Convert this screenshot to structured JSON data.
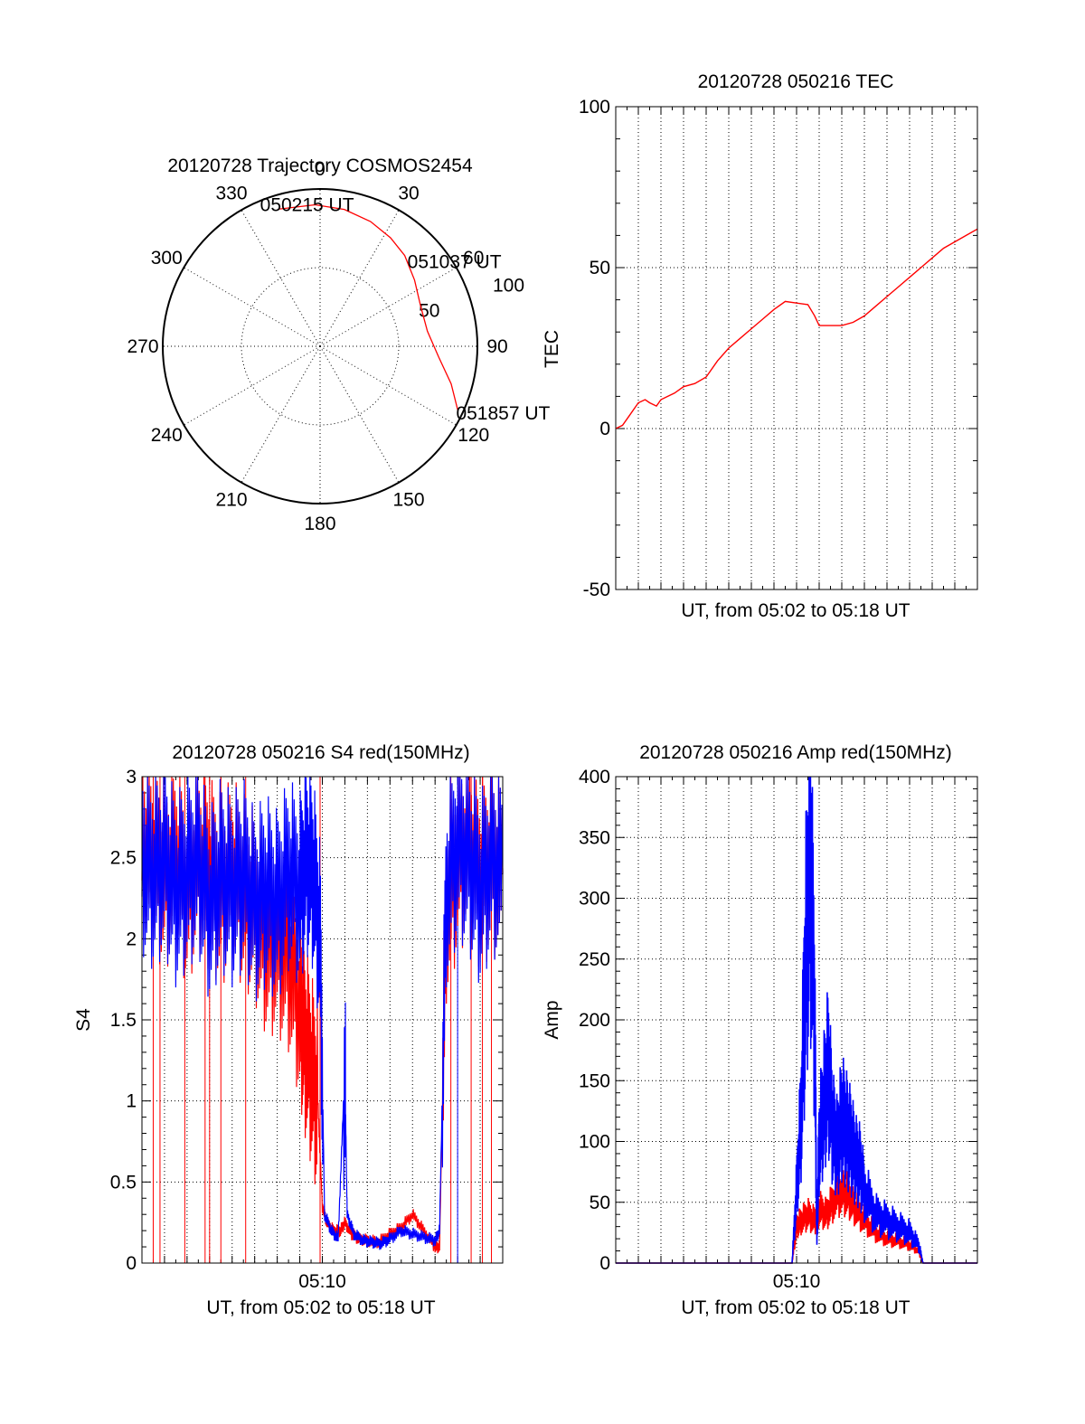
{
  "colors": {
    "red": "#ff0000",
    "blue": "#0000ff",
    "axis": "#000000",
    "grid": "#000000"
  },
  "chart_data": [
    {
      "type": "polar",
      "title": "20120728 Trajectory COSMOS2454",
      "angle_labels": [
        "0",
        "30",
        "60",
        "90",
        "120",
        "150",
        "180",
        "210",
        "240",
        "270",
        "300",
        "330"
      ],
      "radial_labels": [
        "50",
        "100"
      ],
      "radial_range": [
        0,
        100
      ],
      "grid": true,
      "series": [
        {
          "points": [
            {
              "az": 343,
              "el": 8
            },
            {
              "az": 358,
              "el": 9
            },
            {
              "az": 10,
              "el": 10.5
            },
            {
              "az": 22,
              "el": 13
            },
            {
              "az": 33,
              "el": 16
            },
            {
              "az": 43,
              "el": 19
            },
            {
              "az": 55,
              "el": 24
            },
            {
              "az": 68,
              "el": 28
            },
            {
              "az": 82,
              "el": 28
            },
            {
              "az": 95,
              "el": 22
            },
            {
              "az": 106,
              "el": 12
            },
            {
              "az": 115,
              "el": 3
            }
          ]
        }
      ],
      "annotations": [
        {
          "text": "050215 UT",
          "az": 343,
          "el": 8
        },
        {
          "text": "051037 UT",
          "az": 52,
          "el": 20
        },
        {
          "text": "051857 UT",
          "az": 115,
          "el": 3
        }
      ]
    },
    {
      "type": "line",
      "title": "20120728 050216 TEC",
      "xlabel": "UT, from 05:02 to 05:18 UT",
      "ylabel": "TEC",
      "xlim": [
        0,
        16
      ],
      "ylim": [
        -50,
        100
      ],
      "yticks": [
        "-50",
        "0",
        "50",
        "100"
      ],
      "xticks": [],
      "grid": true,
      "series": [
        {
          "x": [
            0,
            0.3,
            0.6,
            1.0,
            1.3,
            1.5,
            1.8,
            2.0,
            2.3,
            2.6,
            3.0,
            3.5,
            4.0,
            4.5,
            5.0,
            5.5,
            6.0,
            6.5,
            7.0,
            7.5,
            8.0,
            8.5,
            8.8,
            9.0,
            9.5,
            10.0,
            10.5,
            11.0,
            11.5,
            12.0,
            12.5,
            13.0,
            13.5,
            14.0,
            14.5,
            15.0,
            15.5,
            16.0
          ],
          "y": [
            0,
            1,
            4,
            8,
            9,
            8,
            7,
            9,
            10,
            11,
            13,
            14,
            16,
            21,
            25,
            28,
            31,
            34,
            37,
            39.5,
            39,
            38.5,
            35,
            32,
            32,
            32,
            33,
            35,
            38,
            41,
            44,
            47,
            50,
            53,
            56,
            58,
            60,
            62
          ]
        }
      ]
    },
    {
      "type": "line",
      "title": "20120728 050216 S4 red(150MHz)",
      "xlabel": "UT, from 05:02 to 05:18 UT",
      "ylabel": "S4",
      "xlim": [
        0,
        16
      ],
      "ylim": [
        0,
        3
      ],
      "yticks": [
        "0",
        "0.5",
        "1",
        "1.5",
        "2",
        "2.5",
        "3"
      ],
      "xticks": [
        {
          "label": "05:10",
          "value": 8
        }
      ],
      "grid": true,
      "series": [
        {
          "name": "",
          "color": "red",
          "x": [
            0,
            0.5,
            1,
            1.5,
            2,
            2.5,
            3,
            3.5,
            4,
            4.5,
            5,
            5.5,
            6,
            6.5,
            7,
            7.2,
            7.5,
            7.8,
            8.0,
            8.2,
            8.5,
            8.8,
            9.0,
            9.3,
            9.6,
            10,
            10.5,
            11,
            11.5,
            12,
            12.5,
            13,
            13.2,
            13.5,
            14,
            14.5,
            15,
            15.5,
            16
          ],
          "y": [
            2.6,
            2.5,
            2.4,
            2.5,
            2.3,
            2.5,
            2.4,
            2.3,
            2.4,
            2.3,
            2.2,
            2.0,
            2.0,
            1.9,
            1.6,
            1.4,
            1.2,
            1.0,
            0.35,
            0.25,
            0.2,
            0.2,
            0.25,
            0.18,
            0.15,
            0.14,
            0.13,
            0.18,
            0.22,
            0.3,
            0.2,
            0.1,
            0.1,
            2.2,
            2.5,
            2.6,
            2.4,
            2.5,
            2.4
          ]
        },
        {
          "name": "",
          "color": "blue",
          "x": [
            0,
            0.5,
            1,
            1.5,
            2,
            2.5,
            3,
            3.5,
            4,
            4.5,
            5,
            5.5,
            6,
            6.5,
            7,
            7.3,
            7.6,
            7.9,
            8.1,
            8.4,
            8.7,
            9.0,
            9.1,
            9.4,
            9.8,
            10.2,
            10.6,
            11,
            11.5,
            12,
            12.5,
            13,
            13.2,
            13.5,
            14,
            14.5,
            15,
            15.5,
            16
          ],
          "y": [
            2.5,
            2.4,
            2.5,
            2.3,
            2.4,
            2.5,
            2.2,
            2.4,
            2.3,
            2.4,
            2.2,
            2.3,
            2.2,
            2.4,
            2.3,
            2.5,
            2.4,
            2.0,
            0.3,
            0.2,
            0.15,
            1.2,
            0.3,
            0.18,
            0.14,
            0.13,
            0.12,
            0.15,
            0.2,
            0.18,
            0.16,
            0.14,
            0.2,
            2.3,
            2.6,
            2.5,
            2.3,
            2.5,
            2.4
          ]
        }
      ]
    },
    {
      "type": "line",
      "title": "20120728 050216 Amp red(150MHz)",
      "xlabel": "UT, from 05:02 to 05:18 UT",
      "ylabel": "Amp",
      "xlim": [
        0,
        16
      ],
      "ylim": [
        0,
        400
      ],
      "yticks": [
        "0",
        "50",
        "100",
        "150",
        "200",
        "250",
        "300",
        "350",
        "400"
      ],
      "xticks": [
        {
          "label": "05:10",
          "value": 8
        }
      ],
      "grid": true,
      "series": [
        {
          "name": "",
          "color": "red",
          "x": [
            0,
            7.8,
            8.0,
            8.2,
            8.5,
            8.8,
            9.0,
            9.3,
            9.6,
            10.0,
            10.3,
            10.6,
            11.0,
            11.5,
            12.0,
            12.5,
            13.0,
            13.4,
            13.6,
            16
          ],
          "y": [
            0,
            0,
            30,
            35,
            40,
            35,
            45,
            40,
            50,
            60,
            55,
            45,
            35,
            25,
            20,
            18,
            15,
            10,
            0,
            0
          ]
        },
        {
          "name": "",
          "color": "blue",
          "x": [
            0,
            7.8,
            8.0,
            8.2,
            8.4,
            8.6,
            8.8,
            8.9,
            9.0,
            9.2,
            9.4,
            9.6,
            9.8,
            10.0,
            10.2,
            10.4,
            10.6,
            10.8,
            11.0,
            11.5,
            12.0,
            12.5,
            13.0,
            13.4,
            13.6,
            16
          ],
          "y": [
            0,
            0,
            60,
            120,
            250,
            340,
            200,
            20,
            100,
            130,
            160,
            110,
            95,
            120,
            110,
            100,
            85,
            80,
            60,
            40,
            35,
            30,
            25,
            15,
            0,
            0
          ]
        }
      ]
    }
  ]
}
